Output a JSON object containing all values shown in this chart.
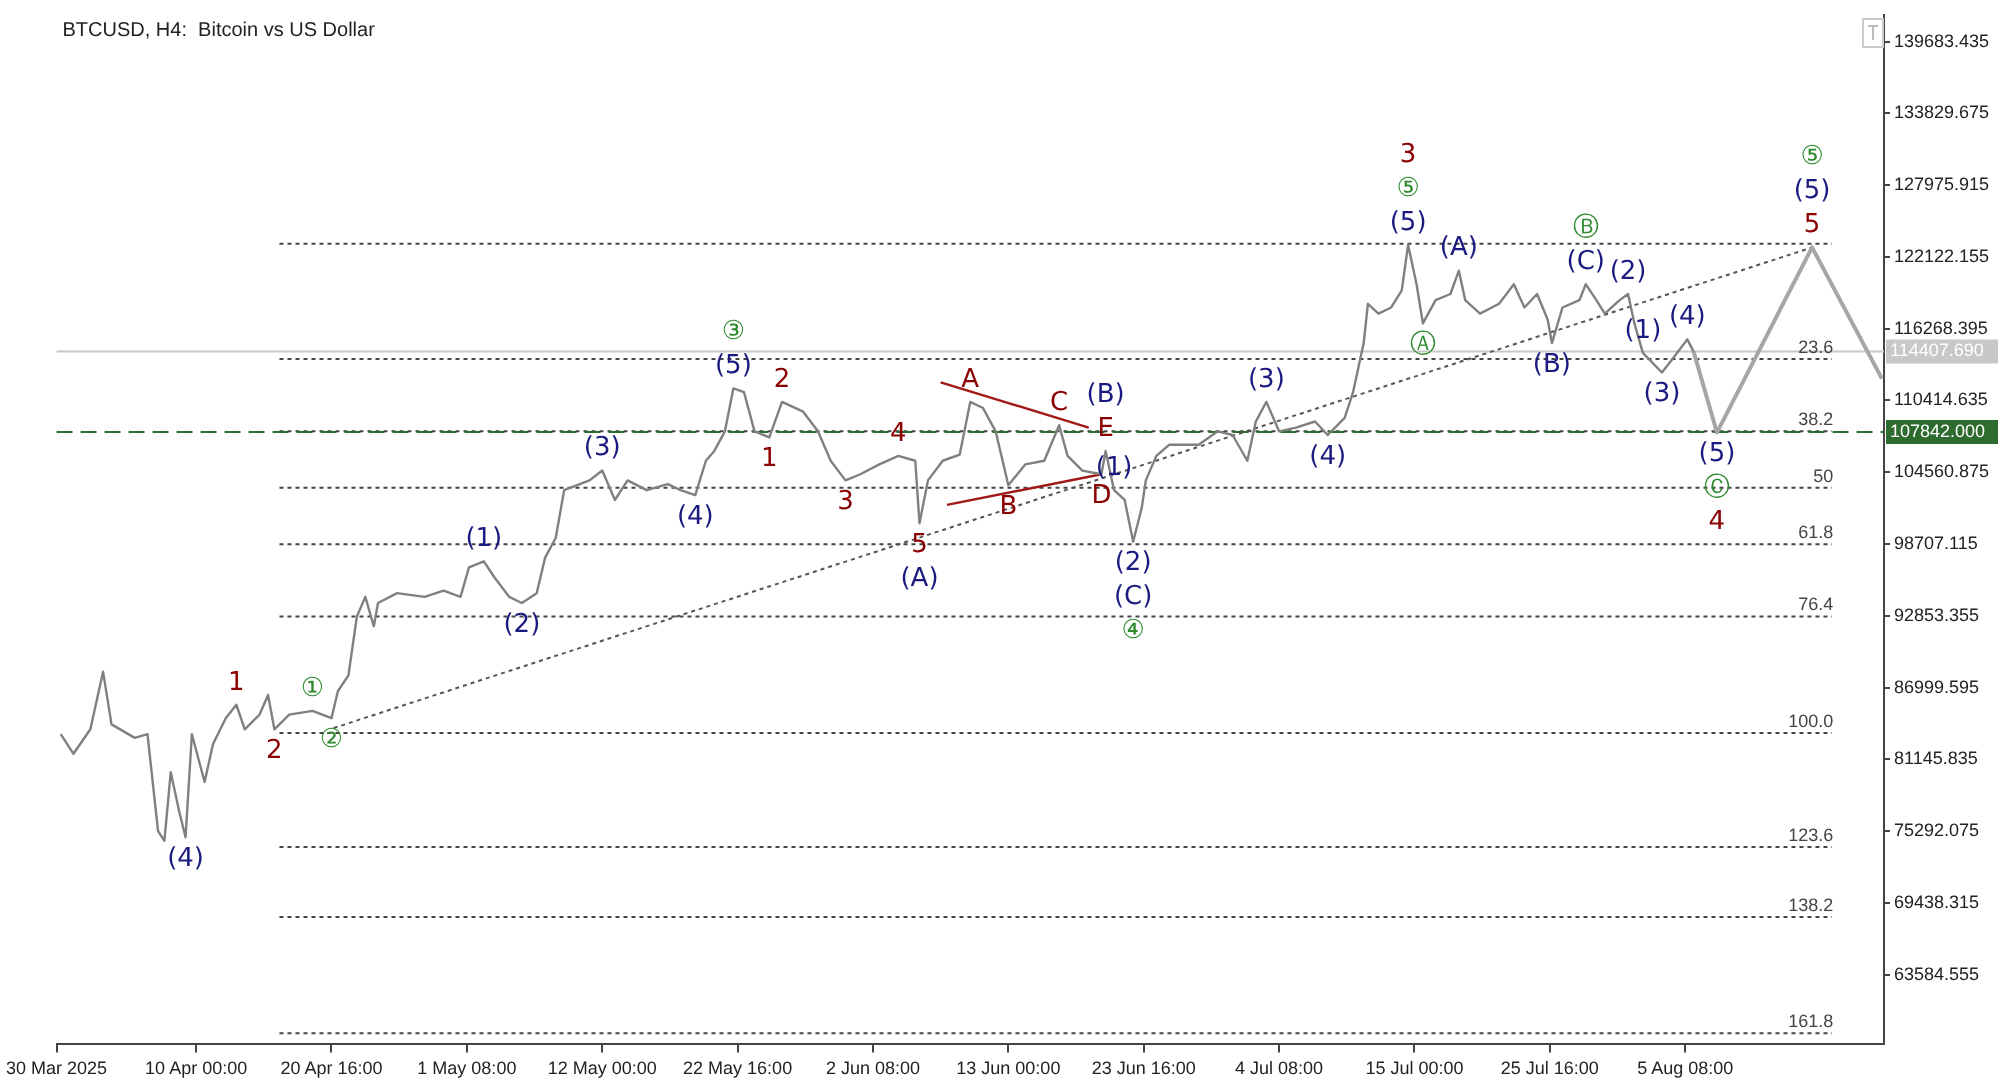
{
  "chart_data": {
    "type": "line",
    "title": "BTCUSD, H4:  Bitcoin vs US Dollar",
    "xlim": [
      "2025-03-30T00:00",
      "2025-08-21T00:00"
    ],
    "xticks": [
      {
        "value": "2025-03-30T00:00",
        "label": "30 Mar 2025"
      },
      {
        "value": "2025-04-10T00:00",
        "label": "10 Apr 00:00"
      },
      {
        "value": "2025-04-20T16:00",
        "label": "20 Apr 16:00"
      },
      {
        "value": "2025-05-01T08:00",
        "label": "1 May 08:00"
      },
      {
        "value": "2025-05-12T00:00",
        "label": "12 May 00:00"
      },
      {
        "value": "2025-05-22T16:00",
        "label": "22 May 16:00"
      },
      {
        "value": "2025-06-02T08:00",
        "label": "2 Jun 08:00"
      },
      {
        "value": "2025-06-13T00:00",
        "label": "13 Jun 00:00"
      },
      {
        "value": "2025-06-23T16:00",
        "label": "23 Jun 16:00"
      },
      {
        "value": "2025-07-04T08:00",
        "label": "4 Jul 08:00"
      },
      {
        "value": "2025-07-15T00:00",
        "label": "15 Jul 00:00"
      },
      {
        "value": "2025-07-25T16:00",
        "label": "25 Jul 16:00"
      },
      {
        "value": "2025-08-05T08:00",
        "label": "5 Aug 08:00"
      }
    ],
    "ylim": [
      57900,
      141870
    ],
    "yticks": [
      63584.555,
      69438.315,
      75292.075,
      81145.835,
      86999.595,
      92853.355,
      98707.115,
      104560.875,
      110414.635,
      116268.395,
      122122.155,
      127975.915,
      133829.675,
      139683.435
    ],
    "series": [
      {
        "color": "#808080",
        "x": [
          "2025-03-30T08:00",
          "2025-03-31T08:00",
          "2025-04-01T16:00",
          "2025-04-02T16:00",
          "2025-04-03T08:00",
          "2025-04-05T04:00",
          "2025-04-06T04:00",
          "2025-04-07T00:00",
          "2025-04-07T12:00",
          "2025-04-08T00:00",
          "2025-04-08T16:00",
          "2025-04-09T04:00",
          "2025-04-09T16:00",
          "2025-04-10T16:00",
          "2025-04-11T08:00",
          "2025-04-12T08:00",
          "2025-04-13T04:00",
          "2025-04-13T20:00",
          "2025-04-15T00:00",
          "2025-04-15T16:00",
          "2025-04-16T04:00",
          "2025-04-17T08:00",
          "2025-04-19T04:00",
          "2025-04-20T16:00",
          "2025-04-21T04:00",
          "2025-04-22T00:00",
          "2025-04-22T16:00",
          "2025-04-23T08:00",
          "2025-04-24T00:00",
          "2025-04-24T08:00",
          "2025-04-25T20:00",
          "2025-04-28T00:00",
          "2025-04-29T12:00",
          "2025-04-30T20:00",
          "2025-05-01T12:00",
          "2025-05-02T16:00",
          "2025-05-03T12:00",
          "2025-05-04T16:00",
          "2025-05-05T16:00",
          "2025-05-06T20:00",
          "2025-05-07T12:00",
          "2025-05-08T08:00",
          "2025-05-09T00:00",
          "2025-05-11T00:00",
          "2025-05-12T00:00",
          "2025-05-13T00:00",
          "2025-05-14T00:00",
          "2025-05-15T12:00",
          "2025-05-17T04:00",
          "2025-05-18T04:00",
          "2025-05-19T08:00",
          "2025-05-20T04:00",
          "2025-05-20T20:00",
          "2025-05-21T16:00",
          "2025-05-22T08:00",
          "2025-05-23T04:00",
          "2025-05-24T00:00",
          "2025-05-25T04:00",
          "2025-05-26T04:00",
          "2025-05-27T20:00",
          "2025-05-29T00:00",
          "2025-05-30T00:00",
          "2025-05-31T04:00",
          "2025-06-01T08:00",
          "2025-06-02T20:00",
          "2025-06-04T08:00",
          "2025-06-05T16:00",
          "2025-06-06T00:00",
          "2025-06-06T16:00",
          "2025-06-07T20:00",
          "2025-06-09T04:00",
          "2025-06-10T00:00",
          "2025-06-11T00:00",
          "2025-06-12T00:00",
          "2025-06-13T00:00",
          "2025-06-14T08:00",
          "2025-06-15T20:00",
          "2025-06-17T00:00",
          "2025-06-17T16:00",
          "2025-06-18T20:00",
          "2025-06-20T08:00",
          "2025-06-20T16:00",
          "2025-06-21T08:00",
          "2025-06-22T04:00",
          "2025-06-22T20:00",
          "2025-06-23T12:00",
          "2025-06-23T20:00",
          "2025-06-24T16:00",
          "2025-06-25T16:00",
          "2025-06-28T00:00",
          "2025-06-29T12:00",
          "2025-06-30T16:00",
          "2025-07-01T20:00",
          "2025-07-02T12:00",
          "2025-07-03T08:00",
          "2025-07-04T08:00",
          "2025-07-05T16:00",
          "2025-07-07T04:00",
          "2025-07-08T04:00",
          "2025-07-09T12:00",
          "2025-07-10T04:00",
          "2025-07-11T00:00",
          "2025-07-11T08:00",
          "2025-07-12T04:00",
          "2025-07-13T04:00",
          "2025-07-14T00:00",
          "2025-07-14T12:00",
          "2025-07-15T04:00",
          "2025-07-15T16:00",
          "2025-07-16T16:00",
          "2025-07-17T20:00",
          "2025-07-18T12:00",
          "2025-07-19T00:00",
          "2025-07-20T04:00",
          "2025-07-21T16:00",
          "2025-07-22T20:00",
          "2025-07-23T16:00",
          "2025-07-24T16:00",
          "2025-07-25T12:00",
          "2025-07-25T20:00",
          "2025-07-26T16:00",
          "2025-07-28T00:00",
          "2025-07-28T12:00",
          "2025-07-29T08:00",
          "2025-07-30T00:00",
          "2025-07-31T04:00",
          "2025-07-31T20:00",
          "2025-08-01T08:00",
          "2025-08-02T00:00",
          "2025-08-03T12:00",
          "2025-08-04T08:00",
          "2025-08-05T12:00",
          "2025-08-06T00:00"
        ],
        "values": [
          83200,
          81600,
          83600,
          88300,
          84000,
          82900,
          83200,
          75300,
          74500,
          80100,
          76900,
          74800,
          83200,
          79300,
          82400,
          84500,
          85600,
          83600,
          84800,
          86400,
          83600,
          84800,
          85100,
          84500,
          86700,
          88000,
          92800,
          94400,
          92000,
          93900,
          94700,
          94400,
          94900,
          94400,
          96800,
          97300,
          96000,
          94400,
          93900,
          94700,
          97600,
          99200,
          103100,
          103900,
          104700,
          102300,
          103900,
          103100,
          103600,
          103100,
          102700,
          105500,
          106300,
          107900,
          111400,
          111100,
          107900,
          107400,
          110300,
          109500,
          107900,
          105500,
          103900,
          104400,
          105200,
          105900,
          105500,
          100400,
          103900,
          105500,
          106000,
          110300,
          109800,
          107900,
          103500,
          105200,
          105500,
          108400,
          105900,
          104700,
          104400,
          106300,
          103100,
          102300,
          98900,
          101600,
          103900,
          105900,
          106800,
          106800,
          107900,
          107600,
          105500,
          108700,
          110300,
          107900,
          108200,
          108700,
          107600,
          109000,
          111100,
          115100,
          118300,
          117500,
          118000,
          119400,
          123100,
          119900,
          116700,
          118600,
          119100,
          121000,
          118600,
          117500,
          118300,
          119900,
          118000,
          119100,
          117000,
          115100,
          118000,
          118600,
          119900,
          118600,
          117500,
          118600,
          119100,
          116700,
          114300,
          112700,
          113800,
          115400,
          114400
        ]
      },
      {
        "color": "#a6a6a6",
        "x": [
          "2025-08-06T00:00",
          "2025-08-07T20:00",
          "2025-08-15T08:00",
          "2025-08-20T20:00"
        ],
        "values": [
          114400,
          107800,
          122900,
          112200
        ]
      },
      {
        "color": "#555555",
        "line_style": "dotted",
        "x": [
          "2025-04-20T20:00",
          "2025-08-15T08:00"
        ],
        "values": [
          83700,
          122900
        ]
      },
      {
        "color": "#a01818",
        "x": [
          "2025-06-07T16:00",
          "2025-06-19T08:00"
        ],
        "values": [
          111900,
          108200
        ]
      },
      {
        "color": "#a01818",
        "x": [
          "2025-06-08T04:00",
          "2025-06-20T08:00"
        ],
        "values": [
          101900,
          104400
        ]
      }
    ],
    "ref_lines": [
      {
        "axis": "y",
        "value": 123200,
        "label": null,
        "color": "#444444",
        "line_style": "dotted"
      },
      {
        "axis": "y",
        "value": 113800,
        "label": null,
        "color": "#444444",
        "line_style": "dotted"
      },
      {
        "axis": "y",
        "value": 107900,
        "label": null,
        "color": "#444444",
        "line_style": "dotted"
      },
      {
        "axis": "y",
        "value": 103300,
        "label": null,
        "color": "#444444",
        "line_style": "dotted"
      },
      {
        "axis": "y",
        "value": 98700,
        "label": null,
        "color": "#444444",
        "line_style": "dotted"
      },
      {
        "axis": "y",
        "value": 92800,
        "label": null,
        "color": "#444444",
        "line_style": "dotted"
      },
      {
        "axis": "y",
        "value": 83300,
        "label": null,
        "color": "#444444",
        "line_style": "dotted"
      },
      {
        "axis": "y",
        "value": 74000,
        "label": null,
        "color": "#444444",
        "line_style": "dotted"
      },
      {
        "axis": "y",
        "value": 68300,
        "label": null,
        "color": "#444444",
        "line_style": "dotted"
      },
      {
        "axis": "y",
        "value": 58800,
        "label": null,
        "color": "#444444",
        "line_style": "dotted"
      },
      {
        "axis": "y",
        "value": 114407.69,
        "label": "114407.690",
        "color": "#c8c8c8",
        "line_style": "solid"
      },
      {
        "axis": "y",
        "value": 107842,
        "label": "107842.000",
        "color": "#2e6b2e",
        "line_style": "dashed"
      }
    ],
    "annotations": [
      {
        "text": "23.6",
        "x": "2025-08-17T00:00",
        "y": 113800
      },
      {
        "text": "38.2",
        "x": "2025-08-17T00:00",
        "y": 107900
      },
      {
        "text": "50",
        "x": "2025-08-17T00:00",
        "y": 103300
      },
      {
        "text": "61.8",
        "x": "2025-08-17T00:00",
        "y": 98700
      },
      {
        "text": "76.4",
        "x": "2025-08-17T00:00",
        "y": 92800
      },
      {
        "text": "100.0",
        "x": "2025-08-17T00:00",
        "y": 83300
      },
      {
        "text": "123.6",
        "x": "2025-08-17T00:00",
        "y": 74000
      },
      {
        "text": "138.2",
        "x": "2025-08-17T00:00",
        "y": 68300
      },
      {
        "text": "161.8",
        "x": "2025-08-17T00:00",
        "y": 58800
      },
      {
        "text": "(4)",
        "x": "2025-04-09T04:00",
        "y": 74800
      },
      {
        "text": "1",
        "x": "2025-04-13T04:00",
        "y": 85600
      },
      {
        "text": "2",
        "x": "2025-04-16T04:00",
        "y": 83600
      },
      {
        "text": "①",
        "x": "2025-04-19T04:00",
        "y": 85100
      },
      {
        "text": "②",
        "x": "2025-04-20T16:00",
        "y": 84500
      },
      {
        "text": "(1)",
        "x": "2025-05-02T16:00",
        "y": 97300
      },
      {
        "text": "(2)",
        "x": "2025-05-05T16:00",
        "y": 93900
      },
      {
        "text": "(3)",
        "x": "2025-05-12T00:00",
        "y": 104700
      },
      {
        "text": "(4)",
        "x": "2025-05-19T08:00",
        "y": 102700
      },
      {
        "text": "(5)",
        "x": "2025-05-22T08:00",
        "y": 111400
      },
      {
        "text": "③",
        "x": "2025-05-22T08:00",
        "y": 111400
      },
      {
        "text": "1",
        "x": "2025-05-25T04:00",
        "y": 107400
      },
      {
        "text": "2",
        "x": "2025-05-26T04:00",
        "y": 110300
      },
      {
        "text": "3",
        "x": "2025-05-31T04:00",
        "y": 103900
      },
      {
        "text": "4",
        "x": "2025-06-04T08:00",
        "y": 105900
      },
      {
        "text": "5",
        "x": "2025-06-06T00:00",
        "y": 100400
      },
      {
        "text": "(A)",
        "x": "2025-06-06T00:00",
        "y": 100400
      },
      {
        "text": "A",
        "x": "2025-06-10T00:00",
        "y": 110300
      },
      {
        "text": "B",
        "x": "2025-06-13T00:00",
        "y": 103500
      },
      {
        "text": "C",
        "x": "2025-06-17T00:00",
        "y": 108400
      },
      {
        "text": "D",
        "x": "2025-06-20T08:00",
        "y": 104400
      },
      {
        "text": "E",
        "x": "2025-06-20T16:00",
        "y": 106300
      },
      {
        "text": "(B)",
        "x": "2025-06-20T16:00",
        "y": 106300
      },
      {
        "text": "(1)",
        "x": "2025-06-21T08:00",
        "y": 103100
      },
      {
        "text": "(2)",
        "x": "2025-06-22T20:00",
        "y": 98900
      },
      {
        "text": "(C)",
        "x": "2025-06-22T20:00",
        "y": 98900
      },
      {
        "text": "④",
        "x": "2025-06-22T20:00",
        "y": 98900
      },
      {
        "text": "(3)",
        "x": "2025-07-03T08:00",
        "y": 110300
      },
      {
        "text": "(4)",
        "x": "2025-07-08T04:00",
        "y": 107600
      },
      {
        "text": "(5)",
        "x": "2025-07-14T12:00",
        "y": 123100
      },
      {
        "text": "⑤",
        "x": "2025-07-14T12:00",
        "y": 123100
      },
      {
        "text": "3",
        "x": "2025-07-14T12:00",
        "y": 123100
      },
      {
        "text": "Ⓐ",
        "x": "2025-07-15T16:00",
        "y": 116700
      },
      {
        "text": "(A)",
        "x": "2025-07-18T12:00",
        "y": 121000
      },
      {
        "text": "(B)",
        "x": "2025-07-25T20:00",
        "y": 115100
      },
      {
        "text": "(C)",
        "x": "2025-07-28T12:00",
        "y": 119900
      },
      {
        "text": "Ⓑ",
        "x": "2025-07-28T12:00",
        "y": 119900
      },
      {
        "text": "(2)",
        "x": "2025-07-31T20:00",
        "y": 119100
      },
      {
        "text": "(1)",
        "x": "2025-08-02T00:00",
        "y": 114300
      },
      {
        "text": "(3)",
        "x": "2025-08-03T12:00",
        "y": 112700
      },
      {
        "text": "(4)",
        "x": "2025-08-05T12:00",
        "y": 115400
      },
      {
        "text": "(5)",
        "x": "2025-08-07T20:00",
        "y": 107800
      },
      {
        "text": "Ⓒ",
        "x": "2025-08-07T20:00",
        "y": 107800
      },
      {
        "text": "4",
        "x": "2025-08-07T20:00",
        "y": 107800
      },
      {
        "text": "5",
        "x": "2025-08-15T08:00",
        "y": 122900
      },
      {
        "text": "(5)",
        "x": "2025-08-15T08:00",
        "y": 122900
      },
      {
        "text": "⑤",
        "x": "2025-08-15T08:00",
        "y": 122900
      }
    ]
  }
}
